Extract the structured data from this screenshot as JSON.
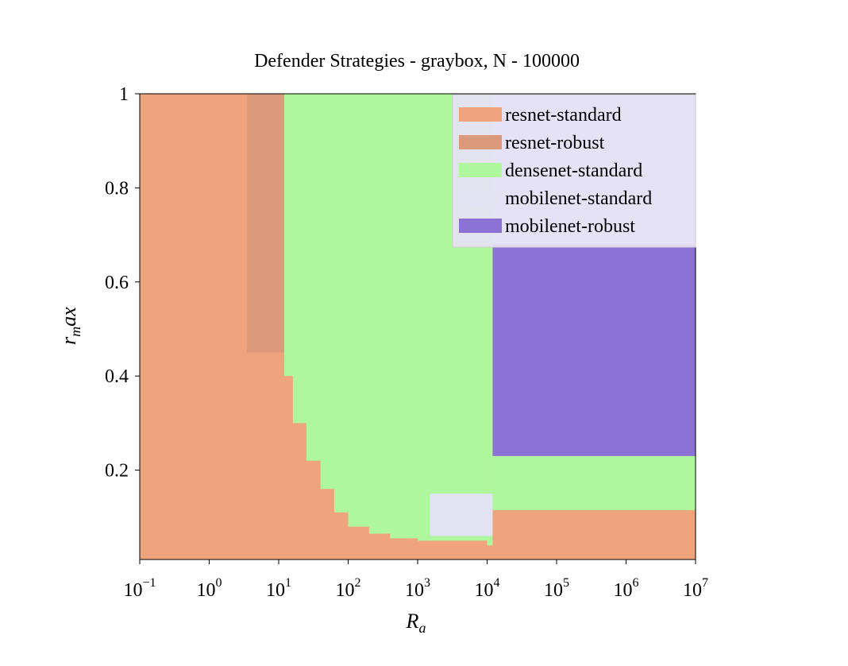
{
  "chart_data": {
    "type": "heatmap",
    "title": "Defender Strategies - graybox, N - 100000",
    "xlabel": "R_a",
    "ylabel": "r_m ax",
    "x_scale": "log",
    "xlim": [
      0.1,
      10000000
    ],
    "ylim": [
      0.01,
      1
    ],
    "x_ticks": [
      {
        "value": 0.1,
        "base": "10",
        "exp": "−1"
      },
      {
        "value": 1,
        "base": "10",
        "exp": "0"
      },
      {
        "value": 10,
        "base": "10",
        "exp": "1"
      },
      {
        "value": 100,
        "base": "10",
        "exp": "2"
      },
      {
        "value": 1000,
        "base": "10",
        "exp": "3"
      },
      {
        "value": 10000,
        "base": "10",
        "exp": "4"
      },
      {
        "value": 100000,
        "base": "10",
        "exp": "5"
      },
      {
        "value": 1000000,
        "base": "10",
        "exp": "6"
      },
      {
        "value": 10000000,
        "base": "10",
        "exp": "7"
      }
    ],
    "y_ticks": [
      {
        "value": 0.2,
        "label": "0.2"
      },
      {
        "value": 0.4,
        "label": "0.4"
      },
      {
        "value": 0.6,
        "label": "0.6"
      },
      {
        "value": 0.8,
        "label": "0.8"
      },
      {
        "value": 1.0,
        "label": "1"
      }
    ],
    "legend_position": "top-right",
    "series": [
      {
        "name": "resnet-standard",
        "color": "#f0a47e"
      },
      {
        "name": "resnet-robust",
        "color": "#dc9a7c"
      },
      {
        "name": "densenet-standard",
        "color": "#aff79c"
      },
      {
        "name": "mobilenet-standard",
        "color": "#e2e2f2"
      },
      {
        "name": "mobilenet-robust",
        "color": "#8b72d4"
      }
    ],
    "regions": [
      {
        "strategy": "resnet-standard",
        "x": [
          0.1,
          10000000
        ],
        "y": [
          0.01,
          1
        ]
      },
      {
        "strategy": "resnet-robust",
        "x": [
          3.5,
          16
        ],
        "y": [
          0.45,
          1
        ]
      },
      {
        "strategy": "densenet-standard",
        "x": [
          12,
          12000
        ],
        "y": [
          0.04,
          1
        ]
      },
      {
        "strategy": "mobilenet-standard",
        "x": [
          1500,
          12000
        ],
        "y": [
          0.06,
          0.15
        ]
      },
      {
        "strategy": "densenet-standard",
        "x": [
          12000,
          10000000
        ],
        "y": [
          0.115,
          0.23
        ]
      },
      {
        "strategy": "mobilenet-robust",
        "x": [
          12000,
          10000000
        ],
        "y": [
          0.23,
          0.68
        ]
      },
      {
        "strategy": "mobilenet-standard",
        "x": [
          12000,
          10000000
        ],
        "y": [
          0.68,
          1
        ]
      }
    ],
    "boundary": {
      "strategy": "resnet-standard",
      "note": "lower-left frontier of densenet region",
      "points": [
        [
          10,
          0.44
        ],
        [
          12,
          0.4
        ],
        [
          16,
          0.3
        ],
        [
          25,
          0.22
        ],
        [
          40,
          0.16
        ],
        [
          63,
          0.11
        ],
        [
          100,
          0.08
        ],
        [
          200,
          0.065
        ],
        [
          400,
          0.055
        ],
        [
          1000,
          0.05
        ],
        [
          10000,
          0.05
        ]
      ]
    }
  }
}
